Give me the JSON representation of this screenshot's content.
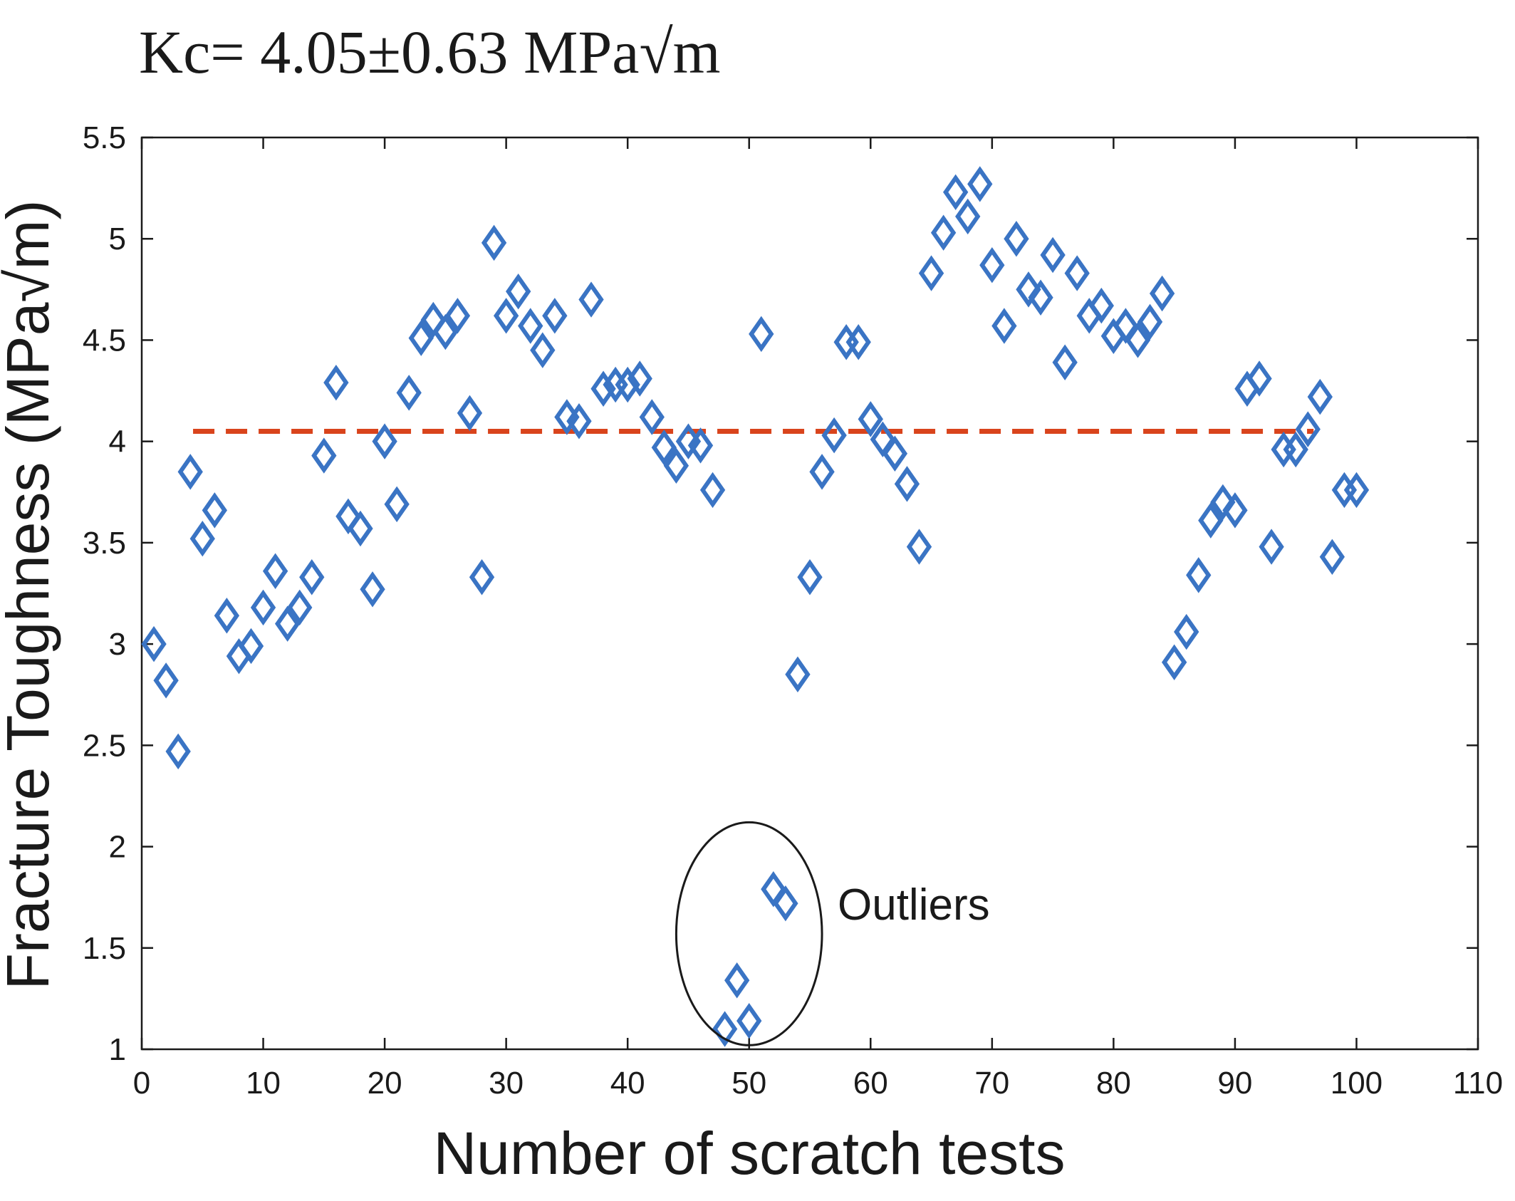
{
  "chart_data": {
    "type": "scatter",
    "title": "Kc= 4.05±0.63  MPa√m",
    "xlabel": "Number of scratch tests",
    "ylabel": "Fracture Toughness  (MPa√m)",
    "xlim": [
      0,
      110
    ],
    "ylim": [
      1,
      5.5
    ],
    "xticks": [
      "0",
      "10",
      "20",
      "30",
      "40",
      "50",
      "60",
      "70",
      "80",
      "90",
      "100",
      "110"
    ],
    "yticks": [
      "1",
      "1.5",
      "2",
      "2.5",
      "3",
      "3.5",
      "4",
      "4.5",
      "5",
      "5.5"
    ],
    "grid": false,
    "marker": "diamond",
    "colors": {
      "marker": "#3a74c4",
      "mean_line": "#d9441c",
      "axis": "#1a1a1a",
      "annotation": "#1a1a1a"
    },
    "mean_line": {
      "value": 4.05,
      "x_range": [
        1,
        95
      ],
      "style": "dashed"
    },
    "annotation": {
      "text": "Outliers",
      "ellipse_center": [
        50,
        1.57
      ],
      "ellipse_radii": [
        6,
        0.55
      ]
    },
    "series": [
      {
        "name": "Fracture toughness",
        "x": [
          1,
          2,
          3,
          4,
          5,
          6,
          7,
          8,
          9,
          10,
          11,
          12,
          13,
          14,
          15,
          16,
          17,
          18,
          19,
          20,
          21,
          22,
          23,
          24,
          25,
          26,
          27,
          28,
          29,
          30,
          31,
          32,
          33,
          34,
          35,
          36,
          37,
          38,
          39,
          40,
          41,
          42,
          43,
          44,
          45,
          46,
          47,
          48,
          49,
          50,
          51,
          52,
          53,
          54,
          55,
          56,
          57,
          58,
          59,
          60,
          61,
          62,
          63,
          64,
          65,
          66,
          67,
          68,
          69,
          70,
          71,
          72,
          73,
          74,
          75,
          76,
          77,
          78,
          79,
          80,
          81,
          82,
          83,
          84,
          85,
          86,
          87,
          88,
          89,
          90,
          91,
          92,
          93,
          94,
          95,
          96,
          97,
          98,
          99,
          100
        ],
        "y": [
          3.0,
          2.82,
          2.47,
          3.85,
          3.52,
          3.66,
          3.14,
          2.94,
          2.99,
          3.18,
          3.36,
          3.1,
          3.18,
          3.33,
          3.93,
          4.29,
          3.63,
          3.57,
          3.27,
          4.0,
          3.69,
          4.24,
          4.51,
          4.6,
          4.54,
          4.62,
          4.14,
          3.33,
          4.98,
          4.62,
          4.74,
          4.57,
          4.45,
          4.62,
          4.12,
          4.1,
          4.7,
          4.26,
          4.28,
          4.28,
          4.31,
          4.12,
          3.97,
          3.88,
          4.0,
          3.98,
          3.76,
          1.1,
          1.34,
          1.14,
          4.53,
          1.79,
          1.72,
          2.85,
          3.33,
          3.85,
          4.03,
          4.49,
          4.49,
          4.11,
          4.01,
          3.94,
          3.79,
          3.48,
          4.83,
          5.03,
          5.23,
          5.11,
          5.27,
          4.87,
          4.57,
          5.0,
          4.75,
          4.71,
          4.92,
          4.39,
          4.83,
          4.62,
          4.67,
          4.52,
          4.57,
          4.5,
          4.59,
          4.73,
          2.91,
          3.06,
          3.34,
          3.61,
          3.7,
          3.66,
          4.26,
          4.31,
          3.48,
          3.96,
          3.96,
          4.06,
          4.22,
          3.43,
          3.76,
          3.76
        ]
      }
    ]
  }
}
